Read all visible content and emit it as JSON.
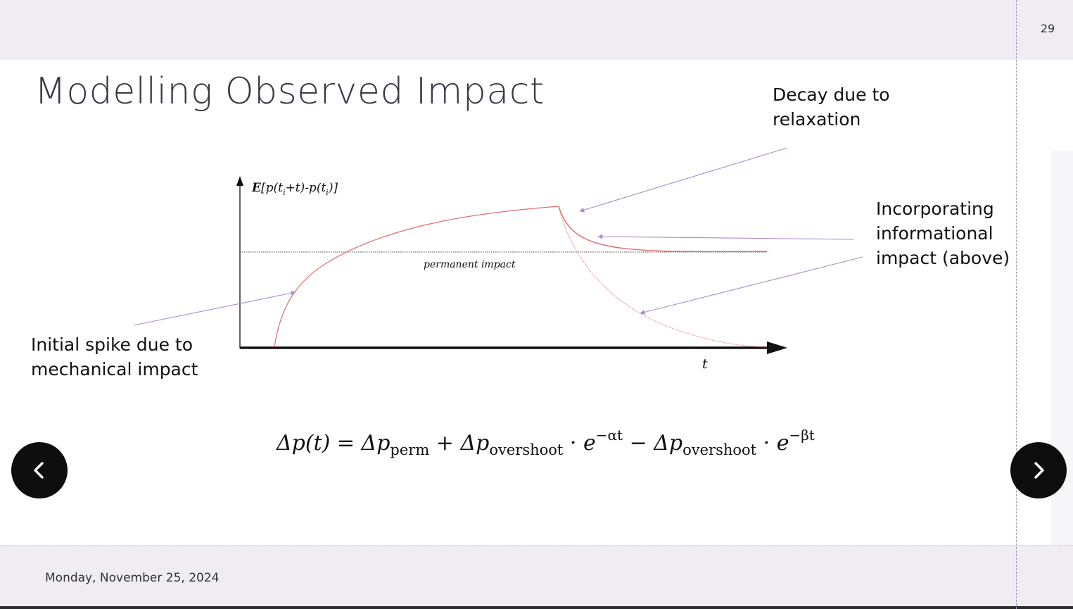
{
  "slide": {
    "page_number": "29",
    "title": "Modelling Observed Impact",
    "footer_date": "Monday, November 25, 2024"
  },
  "annotations": {
    "decay": [
      "Decay due to",
      "relaxation"
    ],
    "informational": [
      "Incorporating",
      "informational",
      "impact (above)"
    ],
    "spike": [
      "Initial spike due to",
      "mechanical impact"
    ]
  },
  "diagram": {
    "y_axis_label": "E[p(t_i+t)-p(t_i)]",
    "x_axis_label": "t",
    "permanent_line_label": "permanent impact"
  },
  "formula": {
    "lhs": "Δp(t) = ",
    "delta1": "Δp",
    "sub1": "perm",
    "plus": " + ",
    "delta2": "Δp",
    "sub2": "overshoot",
    "dot1": " · e",
    "exp1": "−αt",
    "minus": " − ",
    "delta3": "Δp",
    "sub3": "overshoot",
    "dot2": " · e",
    "exp2": "−βt"
  },
  "colors": {
    "curve": "#e0706b",
    "arrow": "#a98ccf",
    "axis": "#111111",
    "nav_button": "#0d0d0d"
  },
  "icons": {
    "prev": "chevron-left-icon",
    "next": "chevron-right-icon"
  }
}
